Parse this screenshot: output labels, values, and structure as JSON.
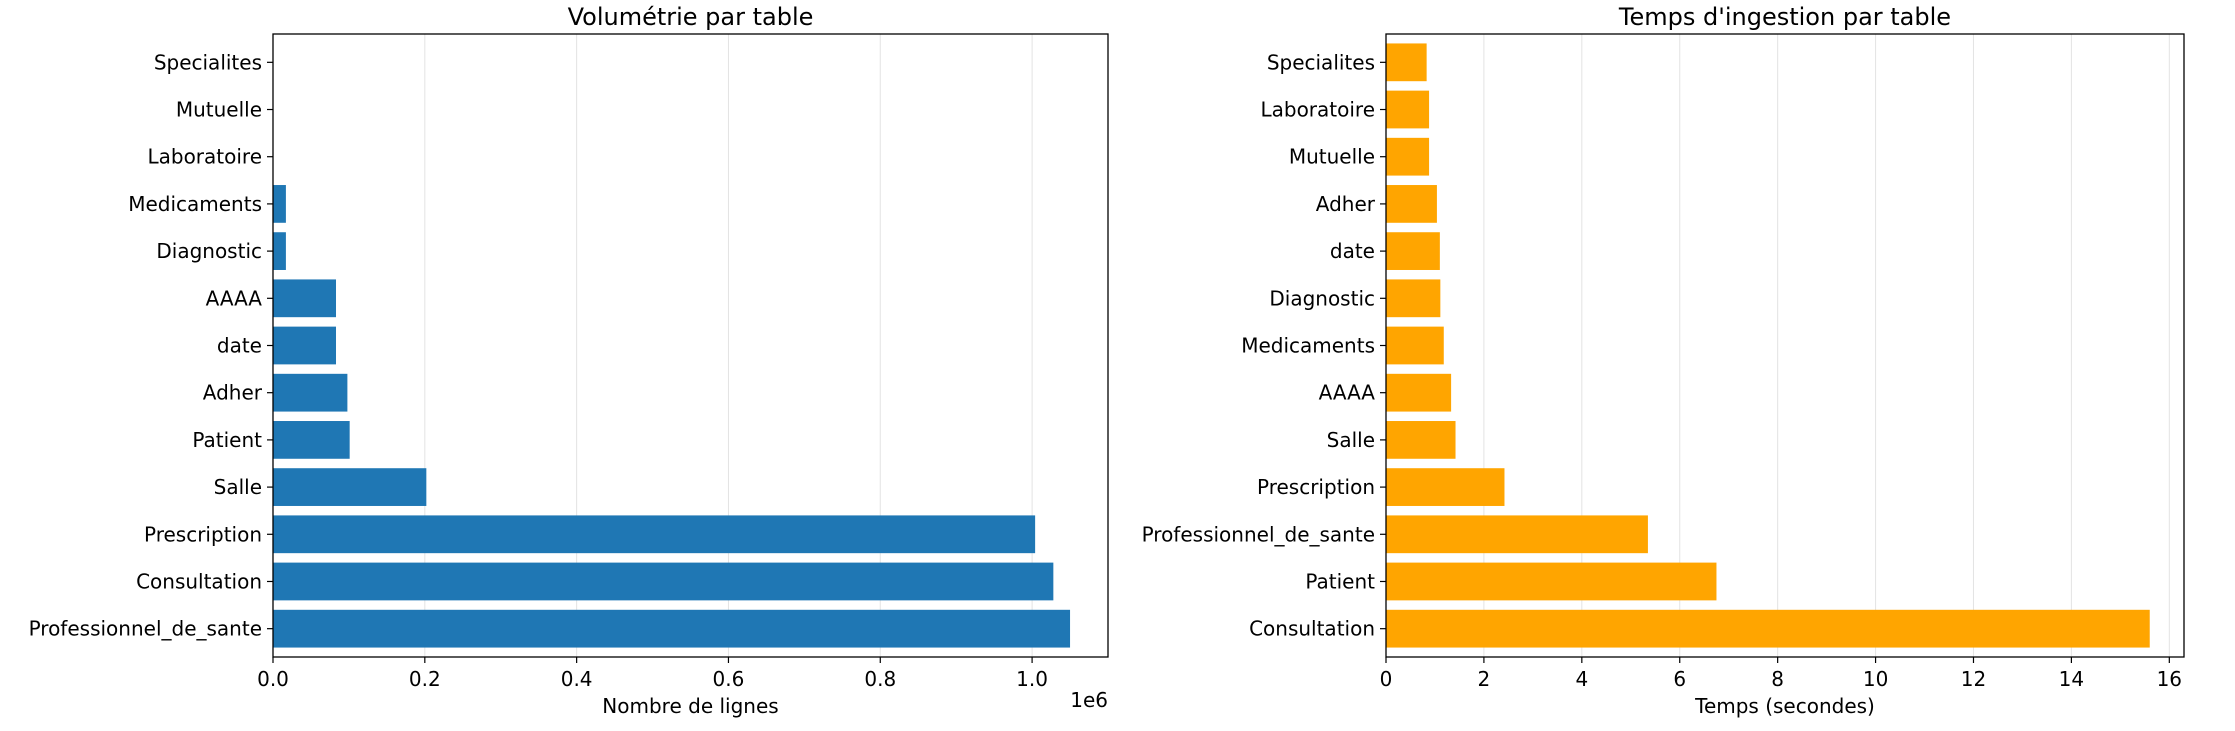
{
  "chart_data": [
    {
      "type": "bar",
      "orientation": "horizontal",
      "title": "Volumétrie par table",
      "xlabel": "Nombre de lignes",
      "ylabel": "",
      "scale_label": "1e6",
      "xlim": [
        0,
        1100000
      ],
      "xticks": [
        0,
        200000,
        400000,
        600000,
        800000,
        1000000
      ],
      "xtick_labels": [
        "0.0",
        "0.2",
        "0.4",
        "0.6",
        "0.8",
        "1.0"
      ],
      "grid": "vertical",
      "color": "#1f77b4",
      "categories": [
        "Professionnel_de_sante",
        "Consultation",
        "Prescription",
        "Salle",
        "Patient",
        "Adher",
        "date",
        "AAAA",
        "Diagnostic",
        "Medicaments",
        "Laboratoire",
        "Mutuelle",
        "Specialites"
      ],
      "values": [
        1050000,
        1028000,
        1004000,
        202000,
        101000,
        98000,
        83000,
        83000,
        17000,
        17000,
        0,
        0,
        0
      ]
    },
    {
      "type": "bar",
      "orientation": "horizontal",
      "title": "Temps d'ingestion par table",
      "xlabel": "Temps (secondes)",
      "ylabel": "",
      "xlim": [
        0,
        16.3
      ],
      "xticks": [
        0,
        2,
        4,
        6,
        8,
        10,
        12,
        14,
        16
      ],
      "xtick_labels": [
        "0",
        "2",
        "4",
        "6",
        "8",
        "10",
        "12",
        "14",
        "16"
      ],
      "grid": "vertical",
      "color": "#ffa500",
      "categories": [
        "Consultation",
        "Patient",
        "Professionnel_de_sante",
        "Prescription",
        "Salle",
        "AAAA",
        "Medicaments",
        "Diagnostic",
        "date",
        "Adher",
        "Mutuelle",
        "Laboratoire",
        "Specialites"
      ],
      "values": [
        15.6,
        6.75,
        5.35,
        2.42,
        1.42,
        1.33,
        1.18,
        1.11,
        1.1,
        1.04,
        0.88,
        0.88,
        0.83
      ]
    }
  ]
}
